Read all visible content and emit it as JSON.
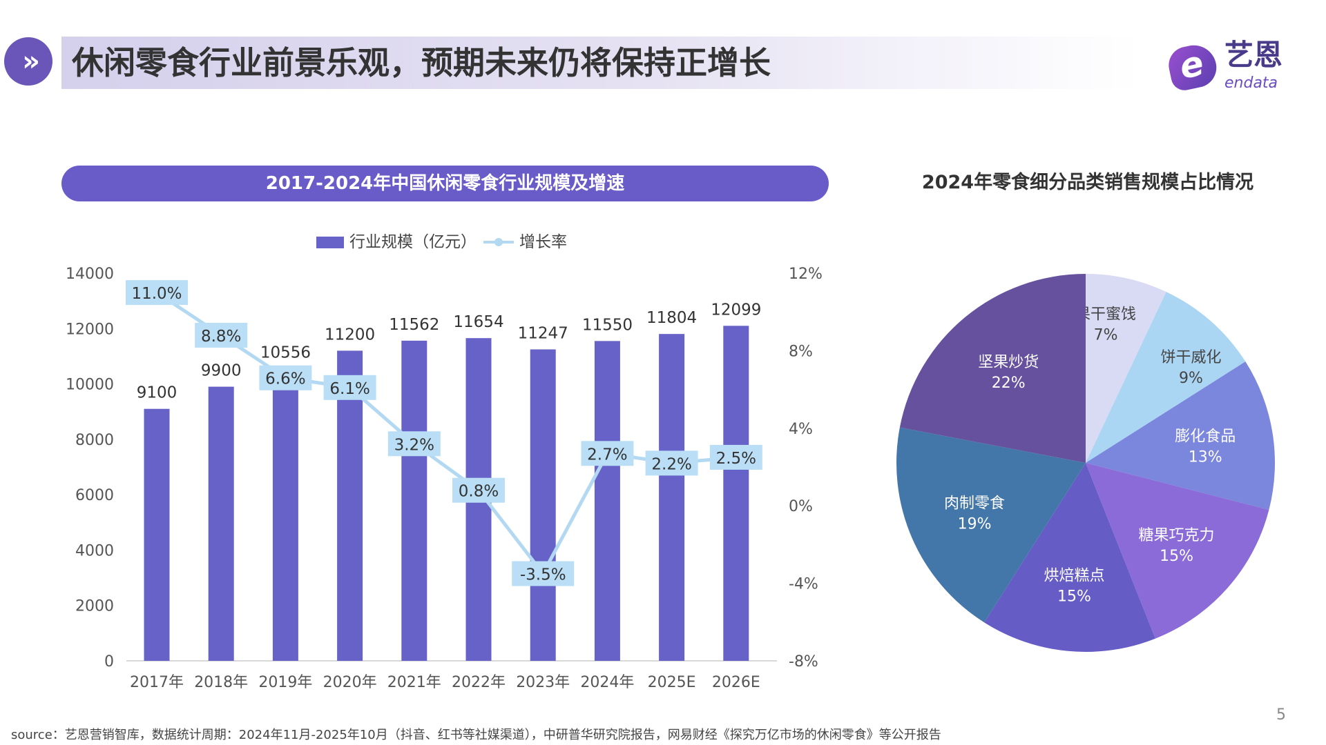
{
  "header": {
    "title": "休闲零食行业前景乐观，预期未来仍将保持正增长",
    "icon": "double-chevron-right-icon",
    "logo_cn": "艺恩",
    "logo_en": "endata"
  },
  "colors": {
    "bar": "#6762c8",
    "line": "#b3d9f2",
    "label_box": "#b9def5",
    "pill": "#6a5cc8"
  },
  "chart_data": [
    {
      "type": "bar",
      "title": "2017-2024年中国休闲零食行业规模及增速",
      "categories": [
        "2017年",
        "2018年",
        "2019年",
        "2020年",
        "2021年",
        "2022年",
        "2023年",
        "2024年",
        "2025E",
        "2026E"
      ],
      "series": [
        {
          "name": "行业规模（亿元）",
          "type": "bar",
          "axis": "left",
          "values": [
            9100,
            9900,
            10556,
            11200,
            11562,
            11654,
            11247,
            11550,
            11804,
            12099
          ],
          "labels": [
            "9100",
            "9900",
            "10556",
            "11200",
            "11562",
            "11654",
            "11247",
            "11550",
            "11804",
            "12099"
          ]
        },
        {
          "name": "增长率",
          "type": "line",
          "axis": "right",
          "values": [
            11.0,
            8.8,
            6.6,
            6.1,
            3.2,
            0.8,
            -3.5,
            2.7,
            2.2,
            2.5
          ],
          "labels": [
            "11.0%",
            "8.8%",
            "6.6%",
            "6.1%",
            "3.2%",
            "0.8%",
            "-3.5%",
            "2.7%",
            "2.2%",
            "2.5%"
          ]
        }
      ],
      "left_axis": {
        "ylim": [
          0,
          14000
        ],
        "ticks": [
          "0",
          "2000",
          "4000",
          "6000",
          "8000",
          "10000",
          "12000",
          "14000"
        ]
      },
      "right_axis": {
        "ylim": [
          -8,
          12
        ],
        "ticks": [
          "-8%",
          "-4%",
          "0%",
          "4%",
          "8%",
          "12%"
        ]
      },
      "legend": "top-center",
      "grid": false
    },
    {
      "type": "pie",
      "title": "2024年零食细分品类销售规模占比情况",
      "slices": [
        {
          "label": "果干蜜饯",
          "value": 7,
          "text": "7%",
          "color": "#d9daf4",
          "text_color": "#444444"
        },
        {
          "label": "饼干威化",
          "value": 9,
          "text": "9%",
          "color": "#aad5f3",
          "text_color": "#444444"
        },
        {
          "label": "膨化食品",
          "value": 13,
          "text": "13%",
          "color": "#7b86dd",
          "text_color": "#ffffff"
        },
        {
          "label": "糖果巧克力",
          "value": 15,
          "text": "15%",
          "color": "#8a6bd8",
          "text_color": "#ffffff"
        },
        {
          "label": "烘焙糕点",
          "value": 15,
          "text": "15%",
          "color": "#665cc6",
          "text_color": "#ffffff"
        },
        {
          "label": "肉制零食",
          "value": 19,
          "text": "19%",
          "color": "#4376a9",
          "text_color": "#ffffff"
        },
        {
          "label": "坚果炒货",
          "value": 22,
          "text": "22%",
          "color": "#65519d",
          "text_color": "#ffffff"
        }
      ]
    }
  ],
  "footer": {
    "source": "source：艺恩营销智库，数据统计周期：2024年11月-2025年10月（抖音、红书等社媒渠道），中研普华研究院报告，网易财经《探究万亿市场的休闲零食》等公开报告",
    "page": "5"
  }
}
